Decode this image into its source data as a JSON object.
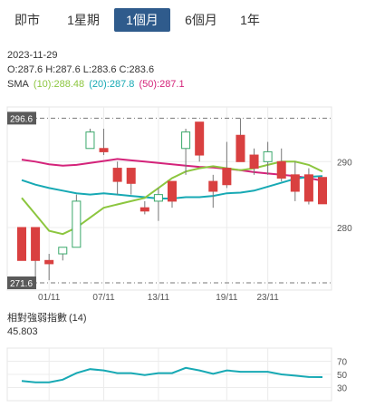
{
  "tabs": [
    {
      "label": "即市",
      "active": false
    },
    {
      "label": "1星期",
      "active": false
    },
    {
      "label": "1個月",
      "active": true
    },
    {
      "label": "6個月",
      "active": false
    },
    {
      "label": "1年",
      "active": false
    }
  ],
  "summary": {
    "date": "2023-11-29",
    "ohlc": "O:287.6  H:287.6  L:283.6  C:283.6",
    "sma_label": "SMA",
    "sma10": "(10):288.48",
    "sma20": "(20):287.8",
    "sma50": "(50):287.1"
  },
  "colors": {
    "accent": "#2f5b8c",
    "up": "#3aa86b",
    "down": "#d94040",
    "sma10": "#8cc63f",
    "sma20": "#17a9b4",
    "sma50": "#d4237a",
    "rsi": "#17a9b4"
  },
  "rsi_panel": {
    "title": "相對強弱指數",
    "period": "(14)",
    "value": "45.803",
    "ticks": [
      "70",
      "50",
      "30"
    ]
  },
  "chart_data": {
    "type": "candlestick",
    "ylim": [
      270.5,
      298.3
    ],
    "high_label": "296.6",
    "low_label": "271.6",
    "y_ticks": [
      290,
      280
    ],
    "x_ticks": [
      "01/11",
      "07/11",
      "13/11",
      "19/11",
      "23/11"
    ],
    "candles": [
      {
        "o": 280.0,
        "h": 280.0,
        "l": 275.0,
        "c": 275.0
      },
      {
        "o": 280.0,
        "h": 280.0,
        "l": 271.6,
        "c": 275.0
      },
      {
        "o": 275.0,
        "h": 276.0,
        "l": 272.0,
        "c": 274.5
      },
      {
        "o": 276.0,
        "h": 277.0,
        "l": 275.0,
        "c": 277.0
      },
      {
        "o": 277.0,
        "h": 285.0,
        "l": 277.0,
        "c": 284.0
      },
      {
        "o": 292.0,
        "h": 295.0,
        "l": 292.0,
        "c": 294.5
      },
      {
        "o": 292.0,
        "h": 295.0,
        "l": 291.0,
        "c": 291.5
      },
      {
        "o": 289.0,
        "h": 290.0,
        "l": 285.0,
        "c": 287.0
      },
      {
        "o": 289.0,
        "h": 289.0,
        "l": 285.0,
        "c": 286.7
      },
      {
        "o": 283.0,
        "h": 284.0,
        "l": 282.0,
        "c": 282.5
      },
      {
        "o": 284.0,
        "h": 286.0,
        "l": 281.0,
        "c": 285.0
      },
      {
        "o": 287.0,
        "h": 287.0,
        "l": 283.0,
        "c": 284.0
      },
      {
        "o": 292.0,
        "h": 295.0,
        "l": 288.0,
        "c": 294.5
      },
      {
        "o": 296.0,
        "h": 296.0,
        "l": 290.0,
        "c": 291.0
      },
      {
        "o": 287.0,
        "h": 288.0,
        "l": 283.0,
        "c": 285.5
      },
      {
        "o": 289.0,
        "h": 293.0,
        "l": 286.0,
        "c": 286.5
      },
      {
        "o": 294.0,
        "h": 296.6,
        "l": 290.0,
        "c": 290.0
      },
      {
        "o": 291.0,
        "h": 292.0,
        "l": 288.0,
        "c": 289.0
      },
      {
        "o": 290.0,
        "h": 293.0,
        "l": 288.0,
        "c": 291.5
      },
      {
        "o": 290.0,
        "h": 292.0,
        "l": 287.0,
        "c": 287.5
      },
      {
        "o": 288.0,
        "h": 290.0,
        "l": 284.0,
        "c": 285.5
      },
      {
        "o": 288.0,
        "h": 289.0,
        "l": 283.5,
        "c": 284.0
      },
      {
        "o": 287.6,
        "h": 287.6,
        "l": 283.6,
        "c": 283.6
      }
    ],
    "sma10": [
      284.5,
      282.0,
      279.5,
      279.0,
      280.0,
      281.5,
      283.0,
      283.5,
      284.0,
      284.5,
      286.0,
      287.5,
      288.5,
      289.0,
      289.3,
      289.0,
      288.7,
      289.0,
      289.5,
      290.0,
      290.0,
      289.5,
      288.5
    ],
    "sma20": [
      287.2,
      286.5,
      286.0,
      285.6,
      285.2,
      285.0,
      285.2,
      285.0,
      284.8,
      284.6,
      284.4,
      284.4,
      284.6,
      284.6,
      284.8,
      285.2,
      285.3,
      285.6,
      286.2,
      286.8,
      287.4,
      287.7,
      287.8
    ],
    "sma50": [
      290.3,
      290.0,
      289.6,
      289.4,
      289.5,
      289.8,
      290.1,
      290.4,
      290.2,
      290.0,
      289.8,
      289.6,
      289.4,
      289.2,
      289.1,
      288.9,
      288.7,
      288.4,
      288.2,
      288.0,
      287.8,
      287.5,
      287.1
    ],
    "rsi": [
      40,
      38,
      38,
      42,
      52,
      58,
      56,
      52,
      52,
      49,
      52,
      52,
      60,
      56,
      51,
      56,
      54,
      54,
      54,
      50,
      48,
      46,
      45.8
    ]
  }
}
